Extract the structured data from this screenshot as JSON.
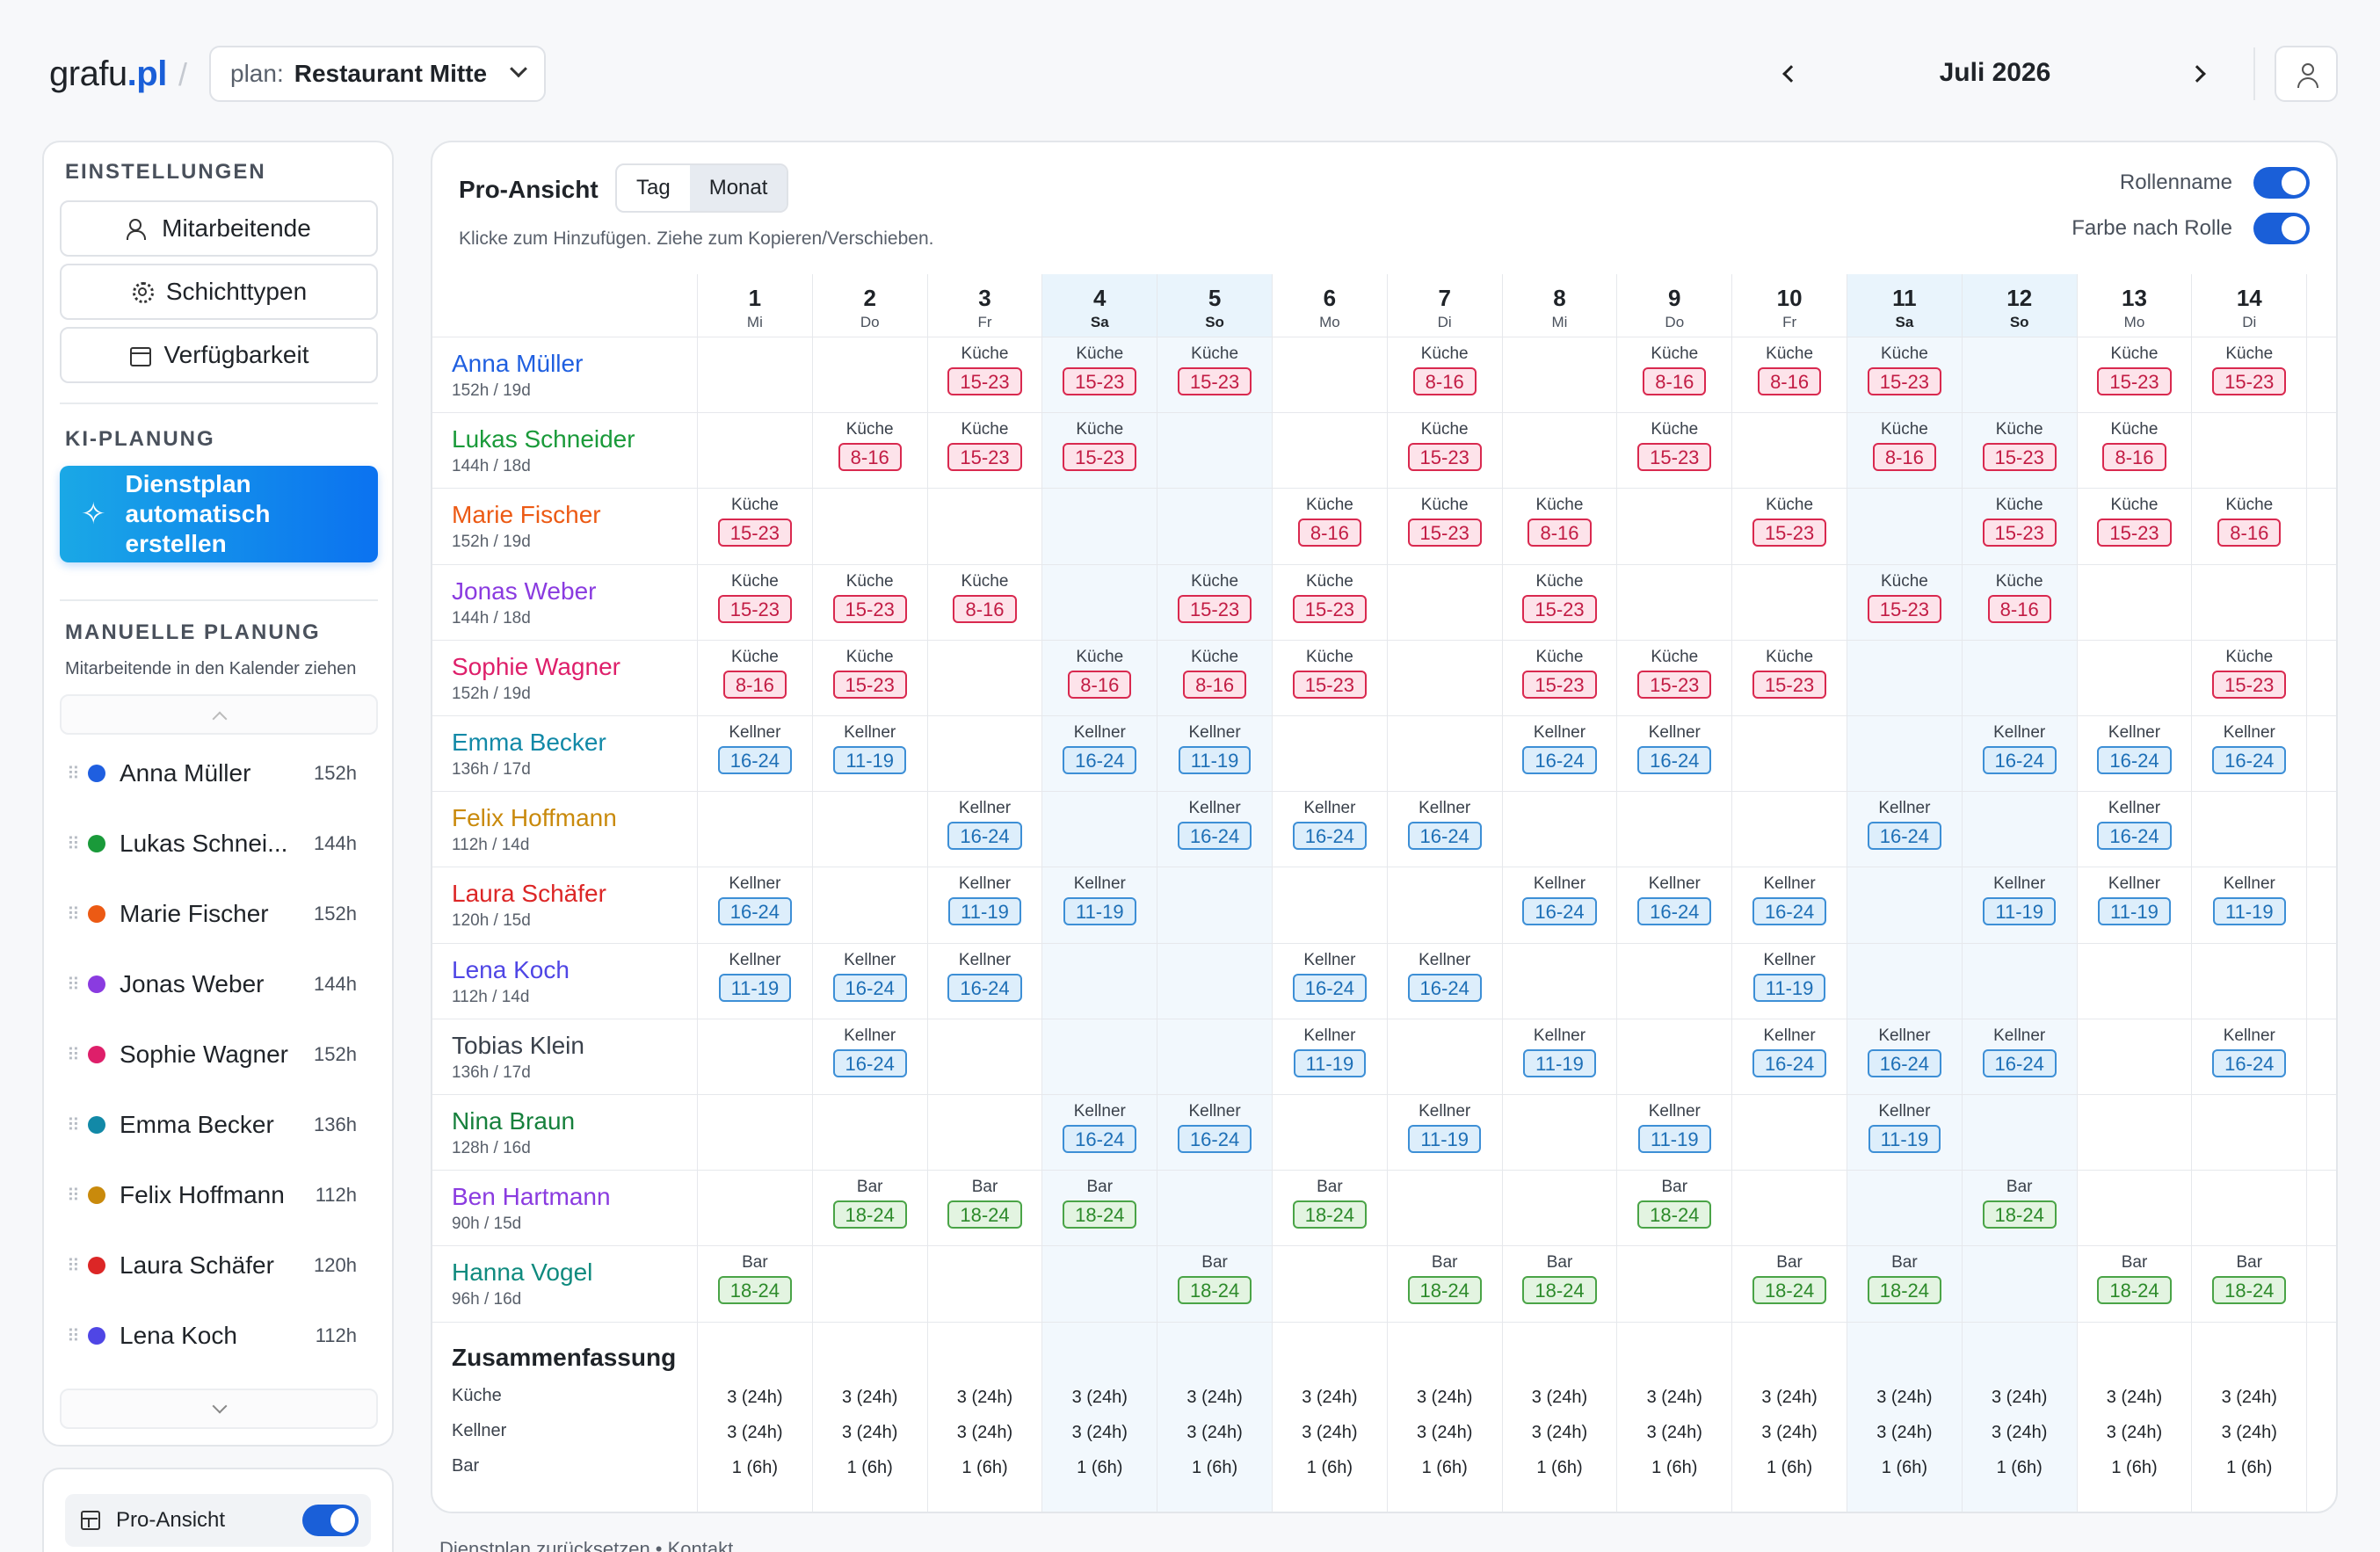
{
  "header": {
    "logo_main": "grafu",
    "logo_tld": ".pl",
    "plan_label": "plan:",
    "plan_value": "Restaurant Mitte",
    "month": "Juli 2026"
  },
  "sidebar": {
    "settings_title": "EINSTELLUNGEN",
    "buttons": [
      "Mitarbeitende",
      "Schichttypen",
      "Verfügbarkeit"
    ],
    "ai_title": "KI-PLANUNG",
    "ai_button": "Dienstplan automatisch erstellen",
    "manual_title": "MANUELLE PLANUNG",
    "manual_hint": "Mitarbeitende in den Kalender ziehen",
    "employees": [
      {
        "name": "Anna Müller",
        "hours": "152h",
        "color": "#1f5fe0"
      },
      {
        "name": "Lukas Schnei...",
        "hours": "144h",
        "color": "#1a9a3a"
      },
      {
        "name": "Marie Fischer",
        "hours": "152h",
        "color": "#ec5a14"
      },
      {
        "name": "Jonas Weber",
        "hours": "144h",
        "color": "#8a3be0"
      },
      {
        "name": "Sophie Wagner",
        "hours": "152h",
        "color": "#de1f6a"
      },
      {
        "name": "Emma Becker",
        "hours": "136h",
        "color": "#1289a7"
      },
      {
        "name": "Felix Hoffmann",
        "hours": "112h",
        "color": "#c98a0c"
      },
      {
        "name": "Laura Schäfer",
        "hours": "120h",
        "color": "#dc2626"
      },
      {
        "name": "Lena Koch",
        "hours": "112h",
        "color": "#4f46e5"
      }
    ],
    "pro_view_label": "Pro-Ansicht"
  },
  "main": {
    "title": "Pro-Ansicht",
    "view_tabs": [
      "Tag",
      "Monat"
    ],
    "active_tab": "Monat",
    "hint": "Klicke zum Hinzufügen. Ziehe zum Kopieren/Verschieben.",
    "option_role_name": "Rollenname",
    "option_color_by_role": "Farbe nach Rolle"
  },
  "days": [
    {
      "num": "1",
      "dow": "Mi",
      "weekend": false
    },
    {
      "num": "2",
      "dow": "Do",
      "weekend": false
    },
    {
      "num": "3",
      "dow": "Fr",
      "weekend": false
    },
    {
      "num": "4",
      "dow": "Sa",
      "weekend": true
    },
    {
      "num": "5",
      "dow": "So",
      "weekend": true
    },
    {
      "num": "6",
      "dow": "Mo",
      "weekend": false
    },
    {
      "num": "7",
      "dow": "Di",
      "weekend": false
    },
    {
      "num": "8",
      "dow": "Mi",
      "weekend": false
    },
    {
      "num": "9",
      "dow": "Do",
      "weekend": false
    },
    {
      "num": "10",
      "dow": "Fr",
      "weekend": false
    },
    {
      "num": "11",
      "dow": "Sa",
      "weekend": true
    },
    {
      "num": "12",
      "dow": "So",
      "weekend": true
    },
    {
      "num": "13",
      "dow": "Mo",
      "weekend": false
    },
    {
      "num": "14",
      "dow": "Di",
      "weekend": false
    }
  ],
  "roles": {
    "K": "Küche",
    "W": "Kellner",
    "B": "Bar"
  },
  "role_colors": {
    "K": "#d9294f",
    "W": "#3d8fd6",
    "B": "#4aa447"
  },
  "schedule": [
    {
      "name": "Anna Müller",
      "stats": "152h / 19d",
      "color": "#1f5fe0",
      "shifts": [
        null,
        null,
        [
          "K",
          "15-23"
        ],
        [
          "K",
          "15-23"
        ],
        [
          "K",
          "15-23"
        ],
        null,
        [
          "K",
          "8-16"
        ],
        null,
        [
          "K",
          "8-16"
        ],
        [
          "K",
          "8-16"
        ],
        [
          "K",
          "15-23"
        ],
        null,
        [
          "K",
          "15-23"
        ],
        [
          "K",
          "15-23"
        ]
      ]
    },
    {
      "name": "Lukas Schneider",
      "stats": "144h / 18d",
      "color": "#1a9a3a",
      "shifts": [
        null,
        [
          "K",
          "8-16"
        ],
        [
          "K",
          "15-23"
        ],
        [
          "K",
          "15-23"
        ],
        null,
        null,
        [
          "K",
          "15-23"
        ],
        null,
        [
          "K",
          "15-23"
        ],
        null,
        [
          "K",
          "8-16"
        ],
        [
          "K",
          "15-23"
        ],
        [
          "K",
          "8-16"
        ],
        null
      ]
    },
    {
      "name": "Marie Fischer",
      "stats": "152h / 19d",
      "color": "#ec5a14",
      "shifts": [
        [
          "K",
          "15-23"
        ],
        null,
        null,
        null,
        null,
        [
          "K",
          "8-16"
        ],
        [
          "K",
          "15-23"
        ],
        [
          "K",
          "8-16"
        ],
        null,
        [
          "K",
          "15-23"
        ],
        null,
        [
          "K",
          "15-23"
        ],
        [
          "K",
          "15-23"
        ],
        [
          "K",
          "8-16"
        ]
      ]
    },
    {
      "name": "Jonas Weber",
      "stats": "144h / 18d",
      "color": "#8a3be0",
      "shifts": [
        [
          "K",
          "15-23"
        ],
        [
          "K",
          "15-23"
        ],
        [
          "K",
          "8-16"
        ],
        null,
        [
          "K",
          "15-23"
        ],
        [
          "K",
          "15-23"
        ],
        null,
        [
          "K",
          "15-23"
        ],
        null,
        null,
        [
          "K",
          "15-23"
        ],
        [
          "K",
          "8-16"
        ],
        null,
        null
      ]
    },
    {
      "name": "Sophie Wagner",
      "stats": "152h / 19d",
      "color": "#de1f6a",
      "shifts": [
        [
          "K",
          "8-16"
        ],
        [
          "K",
          "15-23"
        ],
        null,
        [
          "K",
          "8-16"
        ],
        [
          "K",
          "8-16"
        ],
        [
          "K",
          "15-23"
        ],
        null,
        [
          "K",
          "15-23"
        ],
        [
          "K",
          "15-23"
        ],
        [
          "K",
          "15-23"
        ],
        null,
        null,
        null,
        [
          "K",
          "15-23"
        ]
      ]
    },
    {
      "name": "Emma Becker",
      "stats": "136h / 17d",
      "color": "#1289a7",
      "shifts": [
        [
          "W",
          "16-24"
        ],
        [
          "W",
          "11-19"
        ],
        null,
        [
          "W",
          "16-24"
        ],
        [
          "W",
          "11-19"
        ],
        null,
        null,
        [
          "W",
          "16-24"
        ],
        [
          "W",
          "16-24"
        ],
        null,
        null,
        [
          "W",
          "16-24"
        ],
        [
          "W",
          "16-24"
        ],
        [
          "W",
          "16-24"
        ]
      ]
    },
    {
      "name": "Felix Hoffmann",
      "stats": "112h / 14d",
      "color": "#c98a0c",
      "shifts": [
        null,
        null,
        [
          "W",
          "16-24"
        ],
        null,
        [
          "W",
          "16-24"
        ],
        [
          "W",
          "16-24"
        ],
        [
          "W",
          "16-24"
        ],
        null,
        null,
        null,
        [
          "W",
          "16-24"
        ],
        null,
        [
          "W",
          "16-24"
        ],
        null
      ]
    },
    {
      "name": "Laura Schäfer",
      "stats": "120h / 15d",
      "color": "#dc2626",
      "shifts": [
        [
          "W",
          "16-24"
        ],
        null,
        [
          "W",
          "11-19"
        ],
        [
          "W",
          "11-19"
        ],
        null,
        null,
        null,
        [
          "W",
          "16-24"
        ],
        [
          "W",
          "16-24"
        ],
        [
          "W",
          "16-24"
        ],
        null,
        [
          "W",
          "11-19"
        ],
        [
          "W",
          "11-19"
        ],
        [
          "W",
          "11-19"
        ]
      ]
    },
    {
      "name": "Lena Koch",
      "stats": "112h / 14d",
      "color": "#4f46e5",
      "shifts": [
        [
          "W",
          "11-19"
        ],
        [
          "W",
          "16-24"
        ],
        [
          "W",
          "16-24"
        ],
        null,
        null,
        [
          "W",
          "16-24"
        ],
        [
          "W",
          "16-24"
        ],
        null,
        null,
        [
          "W",
          "11-19"
        ],
        null,
        null,
        null,
        null
      ]
    },
    {
      "name": "Tobias Klein",
      "stats": "136h / 17d",
      "color": "#3a414b",
      "shifts": [
        null,
        [
          "W",
          "16-24"
        ],
        null,
        null,
        null,
        [
          "W",
          "11-19"
        ],
        null,
        [
          "W",
          "11-19"
        ],
        null,
        [
          "W",
          "16-24"
        ],
        [
          "W",
          "16-24"
        ],
        [
          "W",
          "16-24"
        ],
        null,
        [
          "W",
          "16-24"
        ]
      ]
    },
    {
      "name": "Nina Braun",
      "stats": "128h / 16d",
      "color": "#16803c",
      "shifts": [
        null,
        null,
        null,
        [
          "W",
          "16-24"
        ],
        [
          "W",
          "16-24"
        ],
        null,
        [
          "W",
          "11-19"
        ],
        null,
        [
          "W",
          "11-19"
        ],
        null,
        [
          "W",
          "11-19"
        ],
        null,
        null,
        null
      ]
    },
    {
      "name": "Ben Hartmann",
      "stats": "90h / 15d",
      "color": "#8a3be0",
      "shifts": [
        null,
        [
          "B",
          "18-24"
        ],
        [
          "B",
          "18-24"
        ],
        [
          "B",
          "18-24"
        ],
        null,
        [
          "B",
          "18-24"
        ],
        null,
        null,
        [
          "B",
          "18-24"
        ],
        null,
        null,
        [
          "B",
          "18-24"
        ],
        null,
        null
      ]
    },
    {
      "name": "Hanna Vogel",
      "stats": "96h / 16d",
      "color": "#0f8a7e",
      "shifts": [
        [
          "B",
          "18-24"
        ],
        null,
        null,
        null,
        [
          "B",
          "18-24"
        ],
        null,
        [
          "B",
          "18-24"
        ],
        [
          "B",
          "18-24"
        ],
        null,
        [
          "B",
          "18-24"
        ],
        [
          "B",
          "18-24"
        ],
        null,
        [
          "B",
          "18-24"
        ],
        [
          "B",
          "18-24"
        ]
      ]
    }
  ],
  "summary": {
    "title": "Zusammenfassung",
    "labels": [
      "Küche",
      "Kellner",
      "Bar"
    ],
    "values": [
      [
        "3 (24h)",
        "3 (24h)",
        "1 (6h)"
      ],
      [
        "3 (24h)",
        "3 (24h)",
        "1 (6h)"
      ],
      [
        "3 (24h)",
        "3 (24h)",
        "1 (6h)"
      ],
      [
        "3 (24h)",
        "3 (24h)",
        "1 (6h)"
      ],
      [
        "3 (24h)",
        "3 (24h)",
        "1 (6h)"
      ],
      [
        "3 (24h)",
        "3 (24h)",
        "1 (6h)"
      ],
      [
        "3 (24h)",
        "3 (24h)",
        "1 (6h)"
      ],
      [
        "3 (24h)",
        "3 (24h)",
        "1 (6h)"
      ],
      [
        "3 (24h)",
        "3 (24h)",
        "1 (6h)"
      ],
      [
        "3 (24h)",
        "3 (24h)",
        "1 (6h)"
      ],
      [
        "3 (24h)",
        "3 (24h)",
        "1 (6h)"
      ],
      [
        "3 (24h)",
        "3 (24h)",
        "1 (6h)"
      ],
      [
        "3 (24h)",
        "3 (24h)",
        "1 (6h)"
      ],
      [
        "3 (24h)",
        "3 (24h)",
        "1 (6h)"
      ]
    ]
  },
  "footer": {
    "text": "Dienstplan zurücksetzen  •  Kontakt"
  }
}
